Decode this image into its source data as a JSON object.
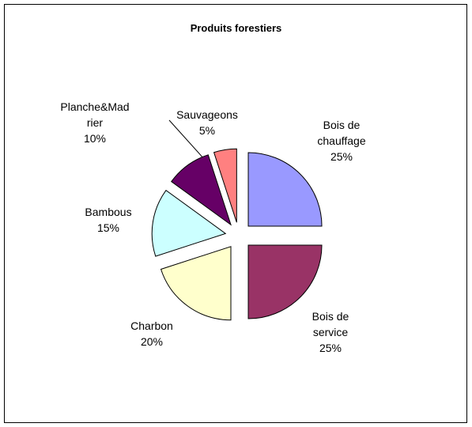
{
  "chart_data": {
    "type": "pie",
    "title": "Produits forestiers",
    "categories": [
      "Bois de chauffage",
      "Bois de service",
      "Charbon",
      "Bambous",
      "Planche&Madrier",
      "Sauvageons"
    ],
    "values": [
      25,
      25,
      20,
      15,
      10,
      5
    ],
    "value_labels": [
      "25%",
      "25%",
      "20%",
      "15%",
      "10%",
      "5%"
    ],
    "colors": [
      "#9999ff",
      "#993366",
      "#ffffcc",
      "#ccffff",
      "#660066",
      "#ff8080"
    ]
  }
}
